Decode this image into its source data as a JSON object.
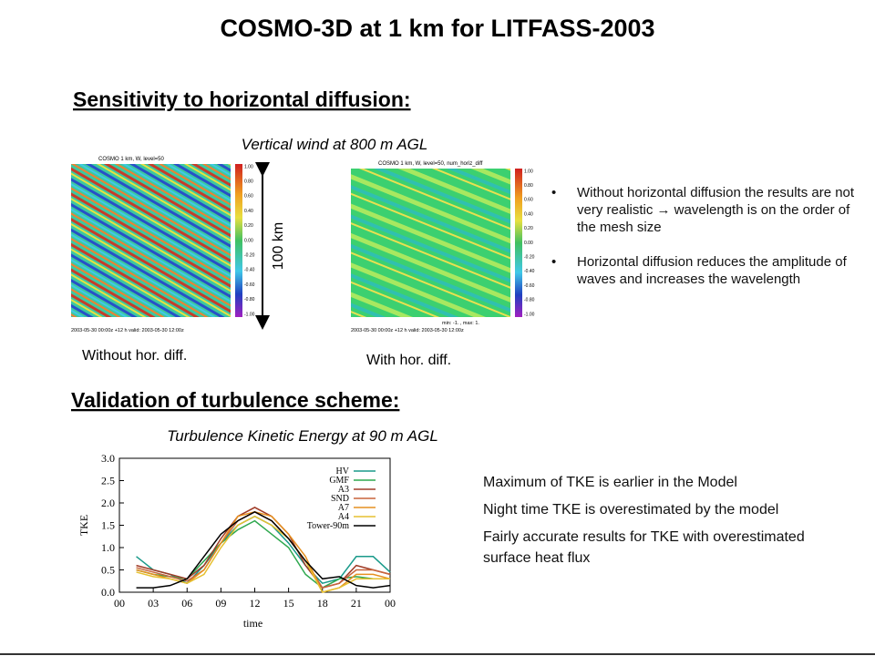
{
  "title": "COSMO-3D at 1 km for LITFASS-2003",
  "section1": {
    "heading": "Sensitivity to horizontal diffusion:",
    "subtitle": "Vertical wind at 800 m AGL",
    "scale_label": "100 km",
    "maps": [
      {
        "header": "COSMO 1 km, W, level=50",
        "footer": "2003-05-30 00:00z +12 h   valid: 2003-05-30 12:00z",
        "caption": "Without hor. diff.",
        "colorbar": [
          "1.00",
          "0.80",
          "0.60",
          "0.40",
          "0.20",
          "0.00",
          "-0.20",
          "-0.40",
          "-0.60",
          "-0.80",
          "-1.00"
        ]
      },
      {
        "header": "COSMO 1 km, W, level=50, num_horiz_diff",
        "stats": "min: -1. , max: 1.",
        "footer": "2003-05-30 00:00z +12 h   valid: 2003-05-30 12:00z",
        "caption": "With hor. diff.",
        "colorbar": [
          "1.00",
          "0.80",
          "0.60",
          "0.40",
          "0.20",
          "0.00",
          "-0.20",
          "-0.40",
          "-0.60",
          "-0.80",
          "-1.00"
        ]
      }
    ],
    "bullets": [
      "Without horizontal diffusion the results are not very realistic → wavelength is on the order of the mesh size",
      "Horizontal diffusion reduces the amplitude of waves and increases the wavelength"
    ]
  },
  "section2": {
    "heading": "Validation of turbulence scheme:",
    "subtitle": "Turbulence Kinetic Energy at 90 m AGL",
    "notes": [
      "Maximum of TKE is earlier in the Model",
      "Night time TKE is overestimated by the model",
      "Fairly accurate results for TKE with overestimated surface heat flux"
    ]
  },
  "chart_data": {
    "type": "line",
    "x_label": "time",
    "y_label": "TKE",
    "x": [
      1.5,
      3,
      4.5,
      6,
      7.5,
      9,
      10.5,
      12,
      13.5,
      15,
      16.5,
      18,
      19.5,
      21,
      22.5,
      24
    ],
    "xlim": [
      0,
      24
    ],
    "xticks": [
      {
        "value": 0,
        "label": "00"
      },
      {
        "value": 3,
        "label": "03"
      },
      {
        "value": 6,
        "label": "06"
      },
      {
        "value": 9,
        "label": "09"
      },
      12,
      15,
      18,
      21,
      {
        "value": 24,
        "label": "00"
      }
    ],
    "ylim": [
      0,
      3
    ],
    "yticks": [
      {
        "value": 0,
        "label": "0.0"
      },
      0.5,
      {
        "value": 1,
        "label": "1.0"
      },
      1.5,
      {
        "value": 2,
        "label": "2.0"
      },
      2.5,
      {
        "value": 3,
        "label": "3.0"
      }
    ],
    "series": [
      {
        "name": "HV",
        "color": "#1a9a8a",
        "values": [
          0.8,
          0.5,
          0.4,
          0.2,
          0.6,
          1.1,
          1.5,
          1.7,
          1.5,
          1.1,
          0.6,
          0.2,
          0.3,
          0.8,
          0.8,
          0.45
        ]
      },
      {
        "name": "GMF",
        "color": "#2fa84f",
        "values": [
          0.5,
          0.4,
          0.35,
          0.3,
          0.7,
          1.1,
          1.4,
          1.6,
          1.3,
          1.0,
          0.4,
          0.1,
          0.3,
          0.35,
          0.3,
          0.3
        ]
      },
      {
        "name": "A3",
        "color": "#a03c28",
        "values": [
          0.6,
          0.5,
          0.4,
          0.3,
          0.6,
          1.2,
          1.7,
          1.9,
          1.7,
          1.3,
          0.6,
          0.1,
          0.2,
          0.6,
          0.5,
          0.4
        ]
      },
      {
        "name": "SND",
        "color": "#c8643c",
        "values": [
          0.55,
          0.45,
          0.35,
          0.25,
          0.5,
          1.1,
          1.6,
          1.8,
          1.6,
          1.2,
          0.7,
          0.1,
          0.2,
          0.5,
          0.5,
          0.4
        ]
      },
      {
        "name": "A7",
        "color": "#e69020",
        "values": [
          0.5,
          0.4,
          0.3,
          0.2,
          0.5,
          1.1,
          1.7,
          1.8,
          1.7,
          1.3,
          0.8,
          0.0,
          0.1,
          0.4,
          0.4,
          0.3
        ]
      },
      {
        "name": "A4",
        "color": "#e6c030",
        "values": [
          0.45,
          0.35,
          0.3,
          0.2,
          0.4,
          1.0,
          1.5,
          1.7,
          1.5,
          1.2,
          0.7,
          0.0,
          0.1,
          0.3,
          0.3,
          0.3
        ]
      },
      {
        "name": "Tower-90m",
        "color": "#000000",
        "values": [
          0.1,
          0.1,
          0.15,
          0.3,
          0.8,
          1.3,
          1.6,
          1.8,
          1.6,
          1.2,
          0.7,
          0.3,
          0.35,
          0.15,
          0.1,
          0.15
        ]
      }
    ]
  }
}
